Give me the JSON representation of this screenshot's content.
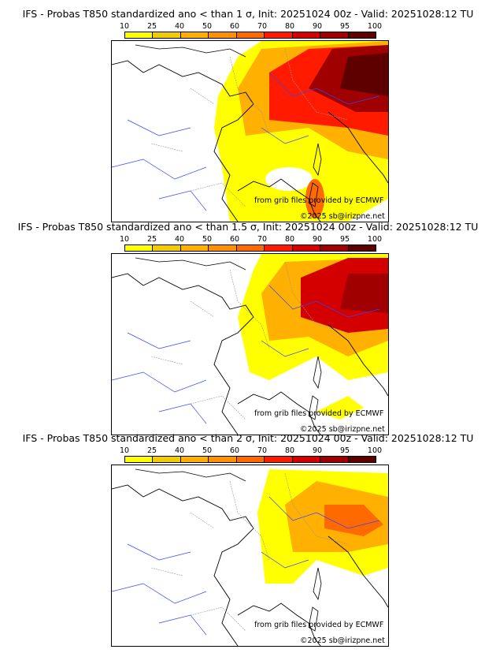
{
  "colorbar": {
    "ticks": [
      "10",
      "25",
      "40",
      "50",
      "60",
      "70",
      "80",
      "90",
      "95",
      "100"
    ],
    "colors": [
      "#ffff00",
      "#f2cc00",
      "#ffb000",
      "#ff9000",
      "#ff6a00",
      "#ff1a00",
      "#d40000",
      "#a00000",
      "#5e0000"
    ]
  },
  "panels": [
    {
      "title": "IFS - Probas T850  standardized ano < than 1 σ, Init: 20251024 00z - Valid: 20251028:12 TU",
      "source": "from grib files provided by ECMWF",
      "copyright": "©2025 sb@irizpne.net"
    },
    {
      "title": "IFS - Probas T850  standardized ano < than 1.5 σ, Init: 20251024 00z - Valid: 20251028:12 TU",
      "source": "from grib files provided by ECMWF",
      "copyright": "©2025 sb@irizpne.net"
    },
    {
      "title": "IFS - Probas T850  standardized ano < than 2 σ, Init: 20251024 00z - Valid: 20251028:12 TU",
      "source": "from grib files provided by ECMWF",
      "copyright": "©2025 sb@irizpne.net"
    }
  ]
}
